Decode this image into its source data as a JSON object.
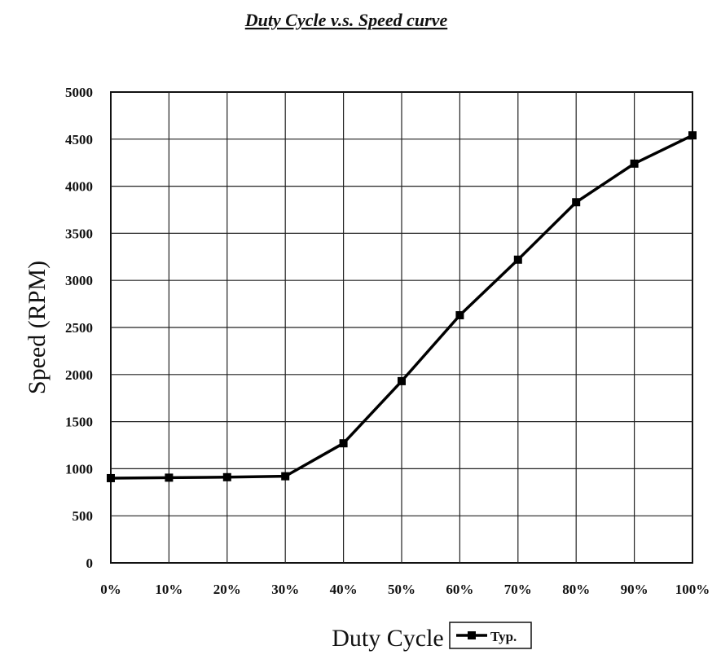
{
  "chart_data": {
    "type": "line",
    "title": "Duty  Cycle v.s. Speed curve",
    "xlabel": "Duty Cycle",
    "ylabel": "Speed (RPM)",
    "categories": [
      "0%",
      "10%",
      "20%",
      "30%",
      "40%",
      "50%",
      "60%",
      "70%",
      "80%",
      "90%",
      "100%"
    ],
    "yticks": [
      "0",
      "500",
      "1000",
      "1500",
      "2000",
      "2500",
      "3000",
      "3500",
      "4000",
      "4500",
      "5000"
    ],
    "ylim": [
      0,
      5000
    ],
    "grid": true,
    "legend_position": "bottom-right",
    "series": [
      {
        "name": "Typ.",
        "marker": "square",
        "color": "#000000",
        "values": [
          900,
          905,
          910,
          920,
          1270,
          1930,
          2630,
          3220,
          3830,
          4240,
          4540
        ]
      }
    ]
  }
}
